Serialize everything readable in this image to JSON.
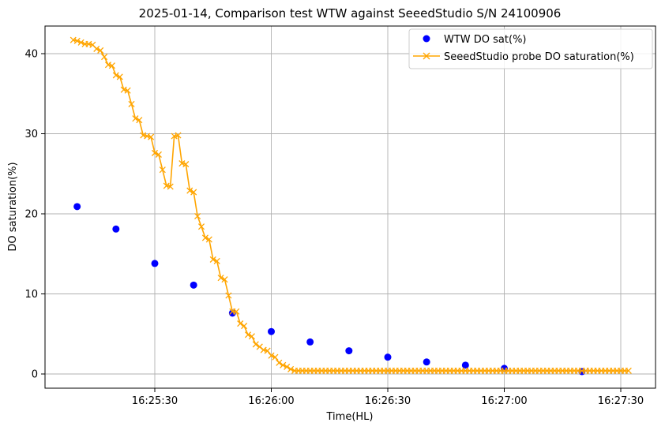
{
  "chart_data": {
    "type": "line",
    "title": "2025-01-14, Comparison test WTW against SeeedStudio S/N 24100906",
    "xlabel": "Time(HL)",
    "ylabel": "DO saturation(%)",
    "x_tick_labels": [
      "16:25:30",
      "16:26:00",
      "16:26:30",
      "16:27:00",
      "16:27:30"
    ],
    "y_tick_labels": [
      "0",
      "10",
      "20",
      "30",
      "40"
    ],
    "grid": true,
    "legend_position": "top-right",
    "series": [
      {
        "name": "WTW DO sat(%)",
        "kind": "scatter",
        "color": "#0000ff",
        "x": [
          "16:25:10",
          "16:25:20",
          "16:25:30",
          "16:25:40",
          "16:25:50",
          "16:26:00",
          "16:26:10",
          "16:26:20",
          "16:26:30",
          "16:26:40",
          "16:26:50",
          "16:27:00",
          "16:27:20"
        ],
        "y": [
          20.9,
          18.1,
          13.8,
          11.1,
          7.6,
          5.3,
          4.0,
          2.9,
          2.1,
          1.5,
          1.1,
          0.7,
          0.3
        ]
      },
      {
        "name": "SeeedStudio probe DO saturation(%)",
        "kind": "line",
        "marker": "x",
        "color": "#ffa500",
        "x": [
          "16:25:09",
          "16:25:10",
          "16:25:11",
          "16:25:12",
          "16:25:13",
          "16:25:14",
          "16:25:15",
          "16:25:16",
          "16:25:17",
          "16:25:18",
          "16:25:19",
          "16:25:20",
          "16:25:21",
          "16:25:22",
          "16:25:23",
          "16:25:24",
          "16:25:25",
          "16:25:26",
          "16:25:27",
          "16:25:28",
          "16:25:29",
          "16:25:30",
          "16:25:31",
          "16:25:32",
          "16:25:33",
          "16:25:34",
          "16:25:35",
          "16:25:36",
          "16:25:37",
          "16:25:38",
          "16:25:39",
          "16:25:40",
          "16:25:41",
          "16:25:42",
          "16:25:43",
          "16:25:44",
          "16:25:45",
          "16:25:46",
          "16:25:47",
          "16:25:48",
          "16:25:49",
          "16:25:50",
          "16:25:51",
          "16:25:52",
          "16:25:53",
          "16:25:54",
          "16:25:55",
          "16:25:56",
          "16:25:57",
          "16:25:58",
          "16:25:59",
          "16:26:00",
          "16:26:01",
          "16:26:02",
          "16:26:03",
          "16:26:04",
          "16:26:05",
          "16:26:06",
          "16:26:07",
          "16:26:08",
          "16:26:09",
          "16:26:10",
          "16:26:11",
          "16:26:12",
          "16:26:13",
          "16:26:14",
          "16:26:15",
          "16:26:16",
          "16:26:17",
          "16:26:18",
          "16:26:19",
          "16:26:20",
          "16:26:21",
          "16:26:22",
          "16:26:23",
          "16:26:24",
          "16:26:25",
          "16:26:26",
          "16:26:27",
          "16:26:28",
          "16:26:29",
          "16:26:30",
          "16:26:31",
          "16:26:32",
          "16:26:33",
          "16:26:34",
          "16:26:35",
          "16:26:36",
          "16:26:37",
          "16:26:38",
          "16:26:39",
          "16:26:40",
          "16:26:41",
          "16:26:42",
          "16:26:43",
          "16:26:44",
          "16:26:45",
          "16:26:46",
          "16:26:47",
          "16:26:48",
          "16:26:49",
          "16:26:50",
          "16:26:51",
          "16:26:52",
          "16:26:53",
          "16:26:54",
          "16:26:55",
          "16:26:56",
          "16:26:57",
          "16:26:58",
          "16:26:59",
          "16:27:00",
          "16:27:01",
          "16:27:02",
          "16:27:03",
          "16:27:04",
          "16:27:05",
          "16:27:06",
          "16:27:07",
          "16:27:08",
          "16:27:09",
          "16:27:10",
          "16:27:11",
          "16:27:12",
          "16:27:13",
          "16:27:14",
          "16:27:15",
          "16:27:16",
          "16:27:17",
          "16:27:18",
          "16:27:19",
          "16:27:20",
          "16:27:21",
          "16:27:22",
          "16:27:23",
          "16:27:24",
          "16:27:25",
          "16:27:26",
          "16:27:27",
          "16:27:28",
          "16:27:29",
          "16:27:30",
          "16:27:31",
          "16:27:32"
        ],
        "y": [
          41.7,
          41.6,
          41.4,
          41.2,
          41.2,
          41.1,
          40.6,
          40.4,
          39.6,
          38.6,
          38.5,
          37.3,
          37.1,
          35.5,
          35.4,
          33.7,
          31.9,
          31.7,
          29.8,
          29.7,
          29.6,
          27.6,
          27.4,
          25.5,
          23.5,
          23.4,
          29.7,
          29.8,
          26.3,
          26.2,
          22.9,
          22.7,
          19.7,
          18.4,
          17.0,
          16.8,
          14.3,
          14.1,
          12.0,
          11.8,
          9.8,
          7.8,
          7.8,
          6.3,
          6.0,
          4.9,
          4.7,
          3.7,
          3.4,
          3.0,
          2.9,
          2.3,
          2.1,
          1.4,
          1.1,
          0.9,
          0.6,
          0.4,
          0.4,
          0.4,
          0.4,
          0.4,
          0.4,
          0.4,
          0.4,
          0.4,
          0.4,
          0.4,
          0.4,
          0.4,
          0.4,
          0.4,
          0.4,
          0.4,
          0.4,
          0.4,
          0.4,
          0.4,
          0.4,
          0.4,
          0.4,
          0.4,
          0.4,
          0.4,
          0.4,
          0.4,
          0.4,
          0.4,
          0.4,
          0.4,
          0.4,
          0.4,
          0.4,
          0.4,
          0.4,
          0.4,
          0.4,
          0.4,
          0.4,
          0.4,
          0.4,
          0.4,
          0.4,
          0.4,
          0.4,
          0.4,
          0.4,
          0.4,
          0.4,
          0.4,
          0.4,
          0.4,
          0.4,
          0.4,
          0.4,
          0.4,
          0.4,
          0.4,
          0.4,
          0.4,
          0.4,
          0.4,
          0.4,
          0.4,
          0.4,
          0.4,
          0.4,
          0.4,
          0.4,
          0.4,
          0.4,
          0.4,
          0.4,
          0.4,
          0.4,
          0.4,
          0.4,
          0.4,
          0.4,
          0.4,
          0.4,
          0.4,
          0.4,
          0.4
        ]
      }
    ]
  }
}
